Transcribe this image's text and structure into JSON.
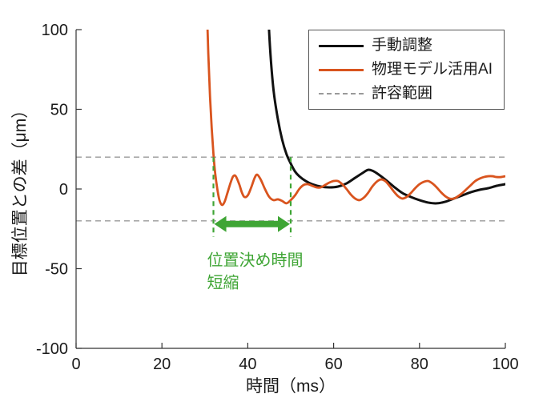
{
  "figure": {
    "background": "#ffffff"
  },
  "chart_data": {
    "type": "line",
    "title": "",
    "xlabel": "時間（ms）",
    "ylabel": "目標位置との差（μm）",
    "xlim": [
      0,
      100
    ],
    "ylim": [
      -100,
      100
    ],
    "xticks": [
      0,
      20,
      40,
      60,
      80,
      100
    ],
    "yticks": [
      -100,
      -50,
      0,
      50,
      100
    ],
    "grid": false,
    "legend_position": "top-right",
    "tolerance_lines": {
      "label": "許容範囲",
      "values": [
        20,
        -20
      ],
      "color": "#9a9a9a",
      "style": "dashed"
    },
    "series": [
      {
        "name": "手動調整",
        "color": "#111111",
        "width": 3,
        "points": [
          [
            44,
            160
          ],
          [
            44.6,
            120
          ],
          [
            45.2,
            88
          ],
          [
            46,
            62
          ],
          [
            47,
            44
          ],
          [
            48,
            31
          ],
          [
            49,
            22
          ],
          [
            50,
            16
          ],
          [
            51,
            11
          ],
          [
            52,
            8
          ],
          [
            53.5,
            5
          ],
          [
            55,
            3
          ],
          [
            57,
            1.5
          ],
          [
            59,
            1
          ],
          [
            61,
            1.5
          ],
          [
            63,
            3.5
          ],
          [
            65,
            7
          ],
          [
            67,
            10.5
          ],
          [
            68,
            12
          ],
          [
            69,
            11.5
          ],
          [
            70,
            10
          ],
          [
            72,
            6
          ],
          [
            74,
            1.5
          ],
          [
            76,
            -2.5
          ],
          [
            78,
            -5
          ],
          [
            80,
            -7
          ],
          [
            82,
            -8.5
          ],
          [
            84,
            -9
          ],
          [
            86,
            -8
          ],
          [
            88,
            -6
          ],
          [
            90,
            -4
          ],
          [
            92,
            -2
          ],
          [
            94,
            -0.5
          ],
          [
            96,
            0.5
          ],
          [
            98,
            2
          ],
          [
            100,
            3
          ]
        ]
      },
      {
        "name": "物理モデル活用AI",
        "color": "#d9541e",
        "width": 2.8,
        "points": [
          [
            30,
            160
          ],
          [
            30.4,
            120
          ],
          [
            30.8,
            85
          ],
          [
            31.2,
            58
          ],
          [
            31.6,
            38
          ],
          [
            32,
            22
          ],
          [
            32.4,
            10
          ],
          [
            32.9,
            0
          ],
          [
            33.4,
            -7
          ],
          [
            34,
            -10
          ],
          [
            34.6,
            -8
          ],
          [
            35.2,
            -3
          ],
          [
            36,
            4
          ],
          [
            36.6,
            8
          ],
          [
            37.2,
            8
          ],
          [
            38,
            3
          ],
          [
            38.6,
            -2
          ],
          [
            39.2,
            -5
          ],
          [
            40,
            -4
          ],
          [
            40.8,
            1
          ],
          [
            41.6,
            7
          ],
          [
            42.2,
            9
          ],
          [
            43,
            6
          ],
          [
            44,
            0
          ],
          [
            45,
            -5
          ],
          [
            46,
            -7
          ],
          [
            47,
            -6.5
          ],
          [
            48,
            -7.5
          ],
          [
            49,
            -9
          ],
          [
            50,
            -7
          ],
          [
            51,
            -4
          ],
          [
            52,
            0
          ],
          [
            53,
            2.5
          ],
          [
            54,
            3
          ],
          [
            55,
            2
          ],
          [
            56,
            1
          ],
          [
            57,
            1
          ],
          [
            58,
            2.5
          ],
          [
            59,
            4
          ],
          [
            60,
            5
          ],
          [
            61,
            5
          ],
          [
            62,
            3
          ],
          [
            63,
            0
          ],
          [
            64,
            -3.5
          ],
          [
            65,
            -6
          ],
          [
            66,
            -7
          ],
          [
            67,
            -5.5
          ],
          [
            68,
            -2.5
          ],
          [
            69,
            1.5
          ],
          [
            70,
            4.5
          ],
          [
            71,
            6
          ],
          [
            72,
            5
          ],
          [
            73,
            2
          ],
          [
            74,
            -1.5
          ],
          [
            75,
            -4.5
          ],
          [
            76,
            -6
          ],
          [
            77,
            -5
          ],
          [
            78,
            -2.5
          ],
          [
            79,
            0.5
          ],
          [
            80,
            3
          ],
          [
            81,
            4.5
          ],
          [
            82,
            5
          ],
          [
            83,
            3.5
          ],
          [
            84,
            1
          ],
          [
            85,
            -2
          ],
          [
            86,
            -4.5
          ],
          [
            87,
            -6
          ],
          [
            88,
            -6
          ],
          [
            89,
            -4.5
          ],
          [
            90,
            -2.5
          ],
          [
            91,
            0
          ],
          [
            92,
            2.5
          ],
          [
            93,
            5
          ],
          [
            94,
            6.5
          ],
          [
            95,
            7.5
          ],
          [
            96,
            8
          ],
          [
            97,
            8
          ],
          [
            98,
            7.5
          ],
          [
            99,
            7.5
          ],
          [
            100,
            8
          ]
        ]
      }
    ],
    "annotation": {
      "color": "#3fa535",
      "dashed_x": [
        32,
        50
      ],
      "dashed_y_range": [
        20,
        -30
      ],
      "arrow": {
        "x_start": 32,
        "x_end": 50,
        "y": -22,
        "double_headed": true
      },
      "label_lines": [
        "位置決め時間",
        "短縮"
      ],
      "label_anchor_x": 30.5,
      "label_anchor_y": [
        -48,
        -62
      ]
    },
    "legend": {
      "entries": [
        {
          "label": "手動調整",
          "style": "solid",
          "color": "#111111"
        },
        {
          "label": "物理モデル活用AI",
          "style": "solid",
          "color": "#d9541e"
        },
        {
          "label": "許容範囲",
          "style": "dashed",
          "color": "#9a9a9a"
        }
      ]
    }
  }
}
